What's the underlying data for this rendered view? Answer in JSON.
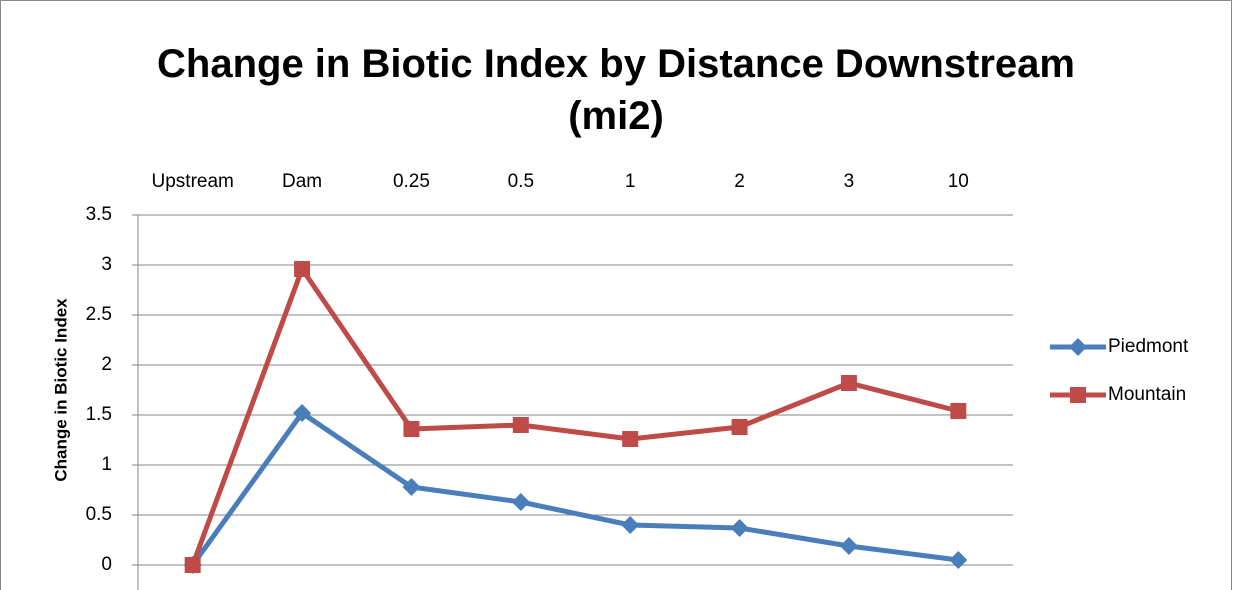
{
  "chart_data": {
    "type": "line",
    "title": "Change in Biotic Index by Distance Downstream (mi2)",
    "y_label": "Change in Biotic Index",
    "categories": [
      "Upstream",
      "Dam",
      "0.25",
      "0.5",
      "1",
      "2",
      "3",
      "10"
    ],
    "series": [
      {
        "name": "Piedmont",
        "color": "#4a7ebb",
        "marker": "diamond",
        "values": [
          0,
          1.52,
          0.78,
          0.63,
          0.4,
          0.37,
          0.19,
          0.05
        ]
      },
      {
        "name": "Mountain",
        "color": "#be4b48",
        "marker": "square",
        "values": [
          0,
          2.96,
          1.36,
          1.4,
          1.26,
          1.38,
          1.82,
          1.54
        ]
      }
    ],
    "ylim": [
      0,
      3.5
    ],
    "yticks": [
      0,
      0.5,
      1,
      1.5,
      2,
      2.5,
      3,
      3.5
    ],
    "grid": true,
    "legend": "right",
    "category_axis": "top"
  }
}
